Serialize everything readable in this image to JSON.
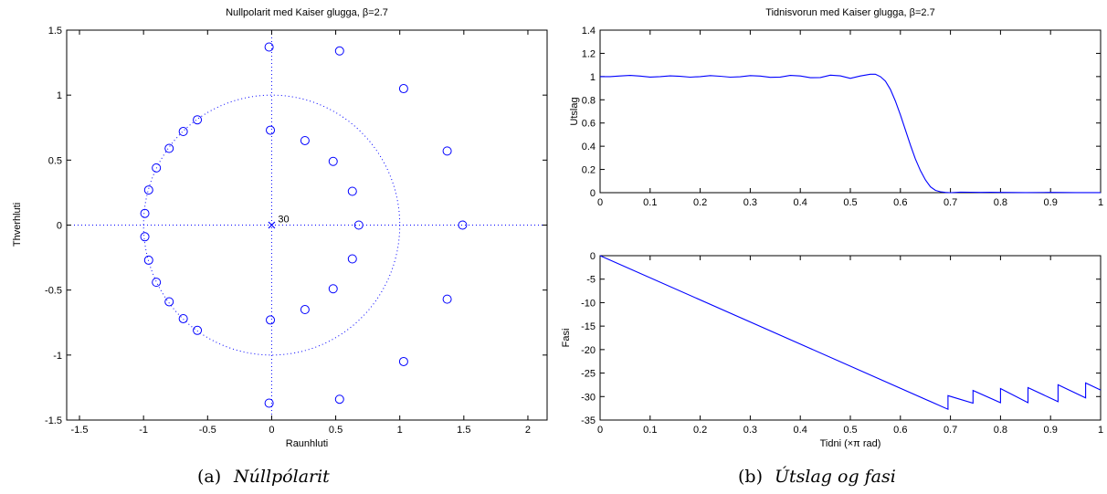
{
  "chart_data": [
    {
      "type": "scatter",
      "title": "Nullpolarit med Kaiser glugga, β=2.7",
      "xlabel": "Raunhluti",
      "ylabel": "Thverhluti",
      "xlim": [
        -1.6,
        2.15
      ],
      "ylim": [
        -1.5,
        1.5
      ],
      "xticks": [
        "-1.5",
        "-1",
        "-0.5",
        "0",
        "0.5",
        "1",
        "1.5",
        "2"
      ],
      "xtick_values": [
        -1.5,
        -1,
        -0.5,
        0,
        0.5,
        1,
        1.5,
        2
      ],
      "yticks": [
        "-1.5",
        "-1",
        "-0.5",
        "0",
        "0.5",
        "1",
        "1.5"
      ],
      "ytick_values": [
        -1.5,
        -1,
        -0.5,
        0,
        0.5,
        1,
        1.5
      ],
      "unit_circle": true,
      "axes_lines_dotted": true,
      "pole": {
        "x": 0,
        "y": 0,
        "label": "30"
      },
      "zeros": [
        [
          -0.02,
          1.37
        ],
        [
          0.53,
          1.34
        ],
        [
          1.03,
          1.05
        ],
        [
          1.37,
          0.57
        ],
        [
          1.49,
          0.0
        ],
        [
          1.37,
          -0.57
        ],
        [
          1.03,
          -1.05
        ],
        [
          0.53,
          -1.34
        ],
        [
          -0.02,
          -1.37
        ],
        [
          -0.01,
          0.73
        ],
        [
          0.26,
          0.65
        ],
        [
          0.48,
          0.49
        ],
        [
          0.63,
          0.26
        ],
        [
          0.68,
          0.0
        ],
        [
          0.63,
          -0.26
        ],
        [
          0.48,
          -0.49
        ],
        [
          0.26,
          -0.65
        ],
        [
          -0.01,
          -0.73
        ],
        [
          -0.58,
          0.81
        ],
        [
          -0.69,
          0.72
        ],
        [
          -0.8,
          0.59
        ],
        [
          -0.9,
          0.44
        ],
        [
          -0.96,
          0.27
        ],
        [
          -0.99,
          0.09
        ],
        [
          -0.58,
          -0.81
        ],
        [
          -0.69,
          -0.72
        ],
        [
          -0.8,
          -0.59
        ],
        [
          -0.9,
          -0.44
        ],
        [
          -0.96,
          -0.27
        ],
        [
          -0.99,
          -0.09
        ]
      ],
      "caption_label": "(a)",
      "caption": "Núllpólarit"
    },
    {
      "type": "line",
      "title": "Tidnisvorun med Kaiser glugga, β=2.7",
      "xlabel": "",
      "ylabel": "Utslag",
      "xlim": [
        0,
        1
      ],
      "ylim": [
        0,
        1.4
      ],
      "xticks": [
        "0",
        "0.1",
        "0.2",
        "0.3",
        "0.4",
        "0.5",
        "0.6",
        "0.7",
        "0.8",
        "0.9",
        "1"
      ],
      "xtick_values": [
        0,
        0.1,
        0.2,
        0.3,
        0.4,
        0.5,
        0.6,
        0.7,
        0.8,
        0.9,
        1
      ],
      "yticks": [
        "0",
        "0.2",
        "0.4",
        "0.6",
        "0.8",
        "1",
        "1.2",
        "1.4"
      ],
      "ytick_values": [
        0,
        0.2,
        0.4,
        0.6,
        0.8,
        1,
        1.2,
        1.4
      ],
      "x": [
        0,
        0.02,
        0.04,
        0.06,
        0.08,
        0.1,
        0.12,
        0.14,
        0.16,
        0.18,
        0.2,
        0.22,
        0.24,
        0.26,
        0.28,
        0.3,
        0.32,
        0.34,
        0.36,
        0.38,
        0.4,
        0.42,
        0.44,
        0.46,
        0.48,
        0.5,
        0.52,
        0.54,
        0.55,
        0.56,
        0.57,
        0.58,
        0.59,
        0.6,
        0.61,
        0.62,
        0.63,
        0.64,
        0.65,
        0.66,
        0.67,
        0.68,
        0.69,
        0.7,
        0.72,
        0.74,
        0.76,
        0.78,
        0.8,
        0.85,
        0.9,
        0.95,
        1.0
      ],
      "y": [
        1.0,
        1.0,
        1.005,
        1.01,
        1.004,
        0.996,
        1.0,
        1.006,
        1.002,
        0.995,
        1.0,
        1.008,
        1.003,
        0.995,
        0.998,
        1.008,
        1.004,
        0.993,
        0.996,
        1.01,
        1.005,
        0.99,
        0.992,
        1.012,
        1.006,
        0.985,
        1.005,
        1.02,
        1.02,
        1.0,
        0.96,
        0.89,
        0.79,
        0.67,
        0.54,
        0.41,
        0.29,
        0.19,
        0.11,
        0.05,
        0.02,
        0.008,
        0.002,
        0.0,
        0.005,
        0.004,
        0.002,
        0.003,
        0.002,
        0.001,
        0.002,
        0.001,
        0.001
      ],
      "caption_label": "(b)",
      "caption": "Útslag og fasi"
    },
    {
      "type": "line",
      "title": "",
      "xlabel": "Tidni (×π rad)",
      "ylabel": "Fasi",
      "xlim": [
        0,
        1
      ],
      "ylim": [
        -35,
        0
      ],
      "xticks": [
        "0",
        "0.1",
        "0.2",
        "0.3",
        "0.4",
        "0.5",
        "0.6",
        "0.7",
        "0.8",
        "0.9",
        "1"
      ],
      "xtick_values": [
        0,
        0.1,
        0.2,
        0.3,
        0.4,
        0.5,
        0.6,
        0.7,
        0.8,
        0.9,
        1
      ],
      "yticks": [
        "-35",
        "-30",
        "-25",
        "-20",
        "-15",
        "-10",
        "-5",
        "0"
      ],
      "ytick_values": [
        -35,
        -30,
        -25,
        -20,
        -15,
        -10,
        -5,
        0
      ],
      "x": [
        0,
        0.695,
        0.695,
        0.745,
        0.745,
        0.8,
        0.8,
        0.855,
        0.855,
        0.915,
        0.915,
        0.97,
        0.97,
        1.0
      ],
      "y": [
        0,
        -32.7,
        -29.8,
        -31.4,
        -28.7,
        -31.3,
        -28.3,
        -31.3,
        -28.1,
        -31.1,
        -27.5,
        -30.3,
        -27.1,
        -28.6
      ]
    }
  ]
}
